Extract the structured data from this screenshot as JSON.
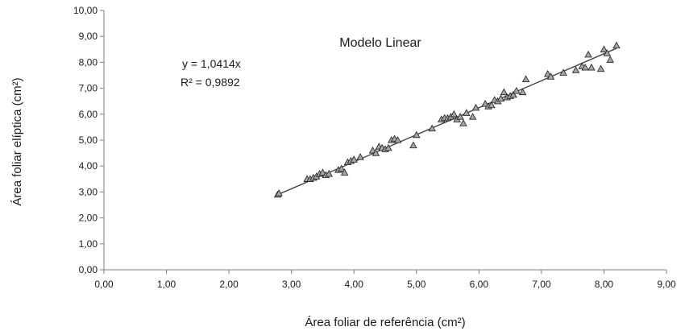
{
  "chart_data": {
    "type": "scatter",
    "title": "Modelo Linear",
    "xlabel": "Área foliar de referência (cm²)",
    "ylabel": "Área foliar elíptica (cm²)",
    "xlim": [
      0,
      9
    ],
    "ylim": [
      0,
      10
    ],
    "xticks": [
      "0,00",
      "1,00",
      "2,00",
      "3,00",
      "4,00",
      "5,00",
      "6,00",
      "7,00",
      "8,00",
      "9,00"
    ],
    "yticks": [
      "0,00",
      "1,00",
      "2,00",
      "3,00",
      "4,00",
      "5,00",
      "6,00",
      "7,00",
      "8,00",
      "9,00",
      "10,00"
    ],
    "equation": "y = 1,0414x",
    "r_squared": "R² = 0,9892",
    "trendline": {
      "slope": 1.0414,
      "x_range": [
        2.75,
        8.2
      ]
    },
    "grid": false,
    "marker": "triangle",
    "colors": {
      "marker_fill": "#a6a6a6",
      "marker_stroke": "#2b2b2b",
      "trendline": "#3a3a3a",
      "axis": "#7f7f7f"
    },
    "points": {
      "x": [
        2.78,
        2.8,
        3.25,
        3.3,
        3.35,
        3.4,
        3.45,
        3.5,
        3.55,
        3.6,
        3.75,
        3.8,
        3.85,
        3.9,
        3.95,
        4.0,
        4.1,
        4.3,
        4.35,
        4.4,
        4.45,
        4.5,
        4.55,
        4.6,
        4.65,
        4.7,
        4.95,
        5.0,
        5.25,
        5.4,
        5.45,
        5.5,
        5.55,
        5.6,
        5.65,
        5.7,
        5.75,
        5.8,
        5.9,
        5.95,
        6.1,
        6.15,
        6.2,
        6.25,
        6.3,
        6.35,
        6.4,
        6.45,
        6.5,
        6.55,
        6.6,
        6.7,
        6.75,
        7.1,
        7.15,
        7.35,
        7.55,
        7.65,
        7.7,
        7.75,
        7.8,
        7.95,
        8.0,
        8.05,
        8.1,
        8.2
      ],
      "y": [
        2.9,
        2.95,
        3.5,
        3.5,
        3.55,
        3.6,
        3.7,
        3.75,
        3.65,
        3.7,
        3.85,
        3.9,
        3.75,
        4.15,
        4.2,
        4.25,
        4.35,
        4.6,
        4.5,
        4.75,
        4.7,
        4.65,
        4.7,
        5.0,
        5.05,
        5.0,
        4.8,
        5.2,
        5.45,
        5.8,
        5.85,
        5.85,
        5.9,
        6.0,
        5.8,
        5.9,
        5.65,
        6.05,
        5.9,
        6.25,
        6.4,
        6.3,
        6.35,
        6.55,
        6.5,
        6.6,
        6.85,
        6.65,
        6.7,
        6.75,
        6.9,
        6.85,
        7.35,
        7.55,
        7.45,
        7.6,
        7.7,
        7.85,
        7.8,
        8.3,
        7.8,
        7.75,
        8.5,
        8.35,
        8.1,
        8.65
      ]
    }
  }
}
